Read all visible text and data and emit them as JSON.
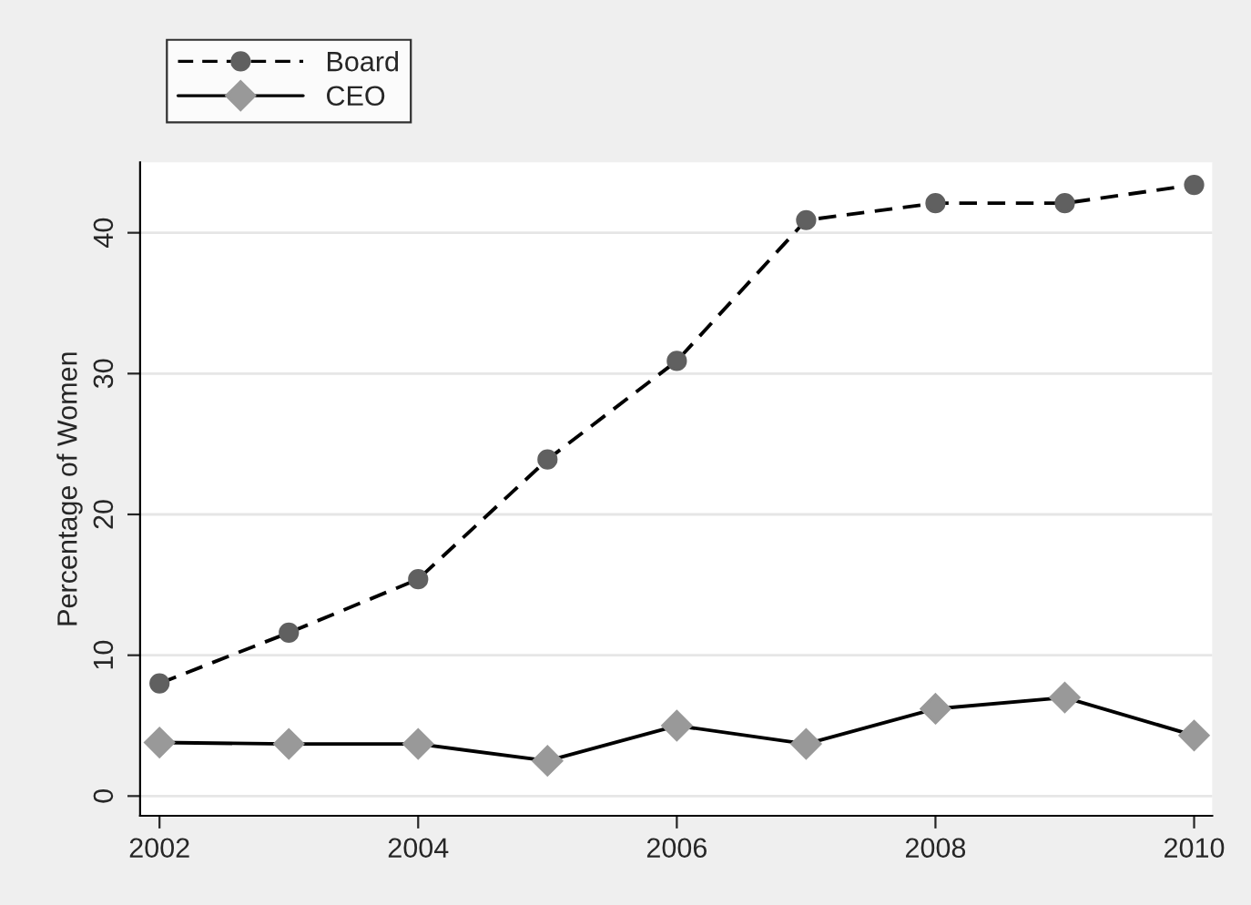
{
  "chart_data": {
    "type": "line",
    "ylabel": "Percentage of Women",
    "x": [
      2002,
      2003,
      2004,
      2005,
      2006,
      2007,
      2008,
      2009,
      2010
    ],
    "series": [
      {
        "name": "Board",
        "color": "#606060",
        "marker": "circle",
        "line_style": "dashed",
        "values": [
          8.0,
          11.6,
          15.4,
          23.9,
          30.9,
          40.9,
          42.1,
          42.1,
          43.4
        ]
      },
      {
        "name": "CEO",
        "color": "#999999",
        "marker": "diamond",
        "line_style": "solid",
        "values": [
          3.8,
          3.7,
          3.7,
          2.5,
          5.0,
          3.7,
          6.2,
          7.0,
          4.3
        ]
      }
    ],
    "xlim": [
      2001.85,
      2010.14
    ],
    "ylim": [
      -1.4,
      45.0
    ],
    "xticks": [
      2002,
      2004,
      2006,
      2008,
      2010
    ],
    "yticks": [
      0,
      10,
      20,
      30,
      40
    ],
    "grid": "y",
    "legend": "top left"
  }
}
